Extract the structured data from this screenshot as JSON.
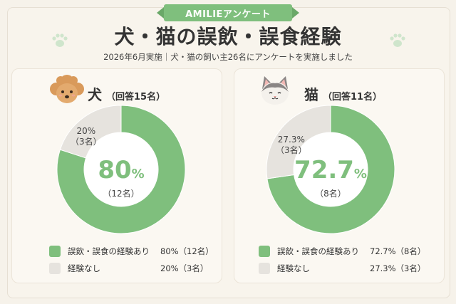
{
  "ribbon": "AMILIEアンケート",
  "title": "犬・猫の誤飲・誤食経験",
  "subtitle": "2026年6月実施｜犬・猫の飼い主26名にアンケートを実施しました",
  "colors": {
    "experienced": "#7fbf7d",
    "none": "#e6e3de",
    "accent": "#7fbf7d"
  },
  "icons": {
    "dog": "poodle-dog-icon",
    "cat": "cat-icon",
    "paw": "paw-icon"
  },
  "chart_data": [
    {
      "type": "pie",
      "title": "犬",
      "subtitle": "（回答15名）",
      "categories": [
        "誤飲・誤食の経験あり",
        "経験なし"
      ],
      "values": [
        80,
        20
      ],
      "counts": [
        "（12名）",
        "（3名）"
      ],
      "center_value": "80",
      "center_unit": "%",
      "center_count": "（12名）",
      "small_label_pct": "20%",
      "small_label_count": "（3名）",
      "legend": [
        {
          "label": "誤飲・誤食の経験あり",
          "value": "80%（12名）"
        },
        {
          "label": "経験なし",
          "value": "20%（3名）"
        }
      ]
    },
    {
      "type": "pie",
      "title": "猫",
      "subtitle": "（回答11名）",
      "categories": [
        "誤飲・誤食の経験あり",
        "経験なし"
      ],
      "values": [
        72.7,
        27.3
      ],
      "counts": [
        "（8名）",
        "（3名）"
      ],
      "center_value": "72.7",
      "center_unit": "%",
      "center_count": "（8名）",
      "small_label_pct": "27.3%",
      "small_label_count": "（3名）",
      "legend": [
        {
          "label": "誤飲・誤食の経験あり",
          "value": "72.7%（8名）"
        },
        {
          "label": "経験なし",
          "value": "27.3%（3名）"
        }
      ]
    }
  ]
}
